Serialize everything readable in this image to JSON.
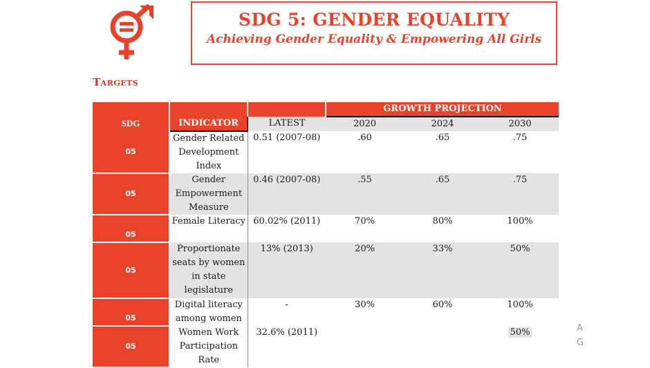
{
  "header": {
    "title": "SDG 5: GENDER EQUALITY",
    "subtitle": "Achieving Gender Equality & Empowering All Girls",
    "logo_icon": "gender-equality-icon",
    "accent": "#e8432a"
  },
  "section_label": "Targets",
  "table": {
    "group_header": "GROWTH PROJECTION",
    "columns": {
      "sdg": "SDG",
      "indicator": "INDICATOR",
      "latest": "LATEST",
      "y2020": "2020",
      "y2024": "2024",
      "y2030": "2030"
    },
    "rows": [
      {
        "sdg": "05",
        "indicator": "Gender Related Development Index",
        "latest": "0.51 (2007-08)",
        "y2020": ".60",
        "y2024": ".65",
        "y2030": ".75"
      },
      {
        "sdg": "05",
        "indicator": "Gender Empowerment Measure",
        "latest": "0.46 (2007-08)",
        "y2020": ".55",
        "y2024": ".65",
        "y2030": ".75"
      },
      {
        "sdg": "05",
        "indicator": "Female Literacy",
        "latest": "60.02% (2011)",
        "y2020": "70%",
        "y2024": "80%",
        "y2030": "100%"
      },
      {
        "sdg": "05",
        "indicator": "Proportionate seats by women in state legislature",
        "latest": "13% (2013)",
        "y2020": "20%",
        "y2024": "33%",
        "y2030": "50%"
      },
      {
        "sdg": "05",
        "indicator": "Digital literacy among women",
        "latest": "-",
        "y2020": "30%",
        "y2024": "60%",
        "y2030": "100%"
      },
      {
        "sdg": "05",
        "indicator": "Women Work Participation Rate",
        "latest": "32.6% (2011)",
        "y2020": "",
        "y2024": "",
        "y2030": "50%"
      }
    ]
  },
  "side_letters": [
    "A",
    "G"
  ]
}
